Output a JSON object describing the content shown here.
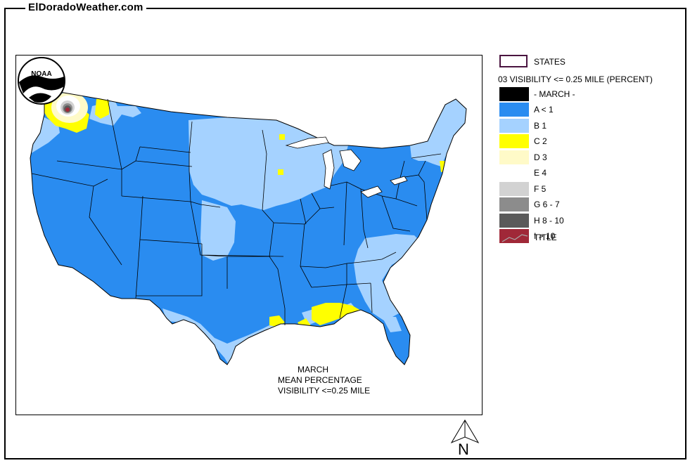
{
  "site_title": "ElDoradoWeather.com",
  "map": {
    "caption": [
      "MARCH",
      "MEAN PERCENTAGE",
      "VISIBILITY <=0.25 MILE"
    ],
    "logo_text": "NOAA"
  },
  "legend": {
    "states_label": "STATES",
    "subtitle": "03 VISIBILITY <= 0.25 MILE (PERCENT)",
    "month_label": "- MARCH -",
    "classes": [
      {
        "label": "A < 1",
        "color": "#2a8cf0"
      },
      {
        "label": "B 1",
        "color": "#a5d2ff"
      },
      {
        "label": "C 2",
        "color": "#ffff00"
      },
      {
        "label": "D 3",
        "color": "#fffac8"
      },
      {
        "label": "E 4",
        "color": "#ffffff"
      },
      {
        "label": "F 5",
        "color": "#d2d2d2"
      },
      {
        "label": "G 6 - 7",
        "color": "#8c8c8c"
      },
      {
        "label": "H 8 - 10",
        "color": "#5a5a5a"
      },
      {
        "label": "I > 10",
        "color": "#a02838"
      }
    ],
    "title_label": "TITLE"
  },
  "north_label": "N"
}
